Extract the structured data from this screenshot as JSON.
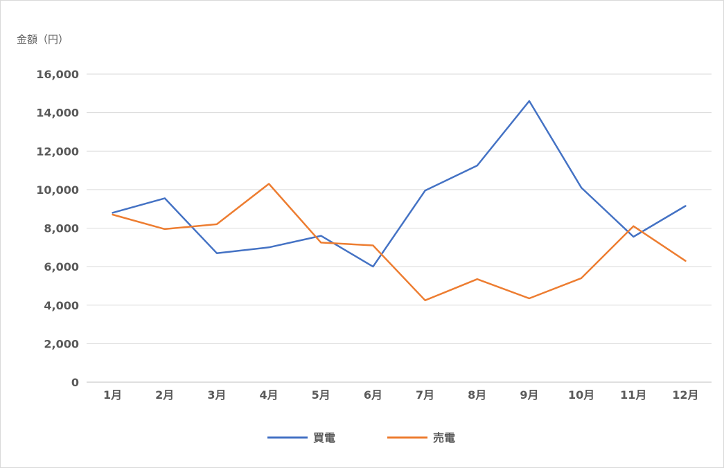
{
  "chart_data": {
    "type": "line",
    "ylabel": "金額（円）",
    "xlabel": "",
    "categories": [
      "1月",
      "2月",
      "3月",
      "4月",
      "5月",
      "6月",
      "7月",
      "8月",
      "9月",
      "10月",
      "11月",
      "12月"
    ],
    "y_ticks": [
      "0",
      "2,000",
      "4,000",
      "6,000",
      "8,000",
      "10,000",
      "12,000",
      "14,000",
      "16,000"
    ],
    "ylim": [
      0,
      16000
    ],
    "grid": true,
    "legend_position": "bottom",
    "series": [
      {
        "name": "買電",
        "color": "#4472C4",
        "values": [
          8800,
          9550,
          6700,
          7000,
          7600,
          6000,
          9950,
          11250,
          14600,
          10100,
          7550,
          9150
        ]
      },
      {
        "name": "売電",
        "color": "#ED7D31",
        "values": [
          8700,
          7950,
          8200,
          10300,
          7250,
          7100,
          4250,
          5350,
          4350,
          5400,
          8100,
          6300
        ]
      }
    ]
  }
}
